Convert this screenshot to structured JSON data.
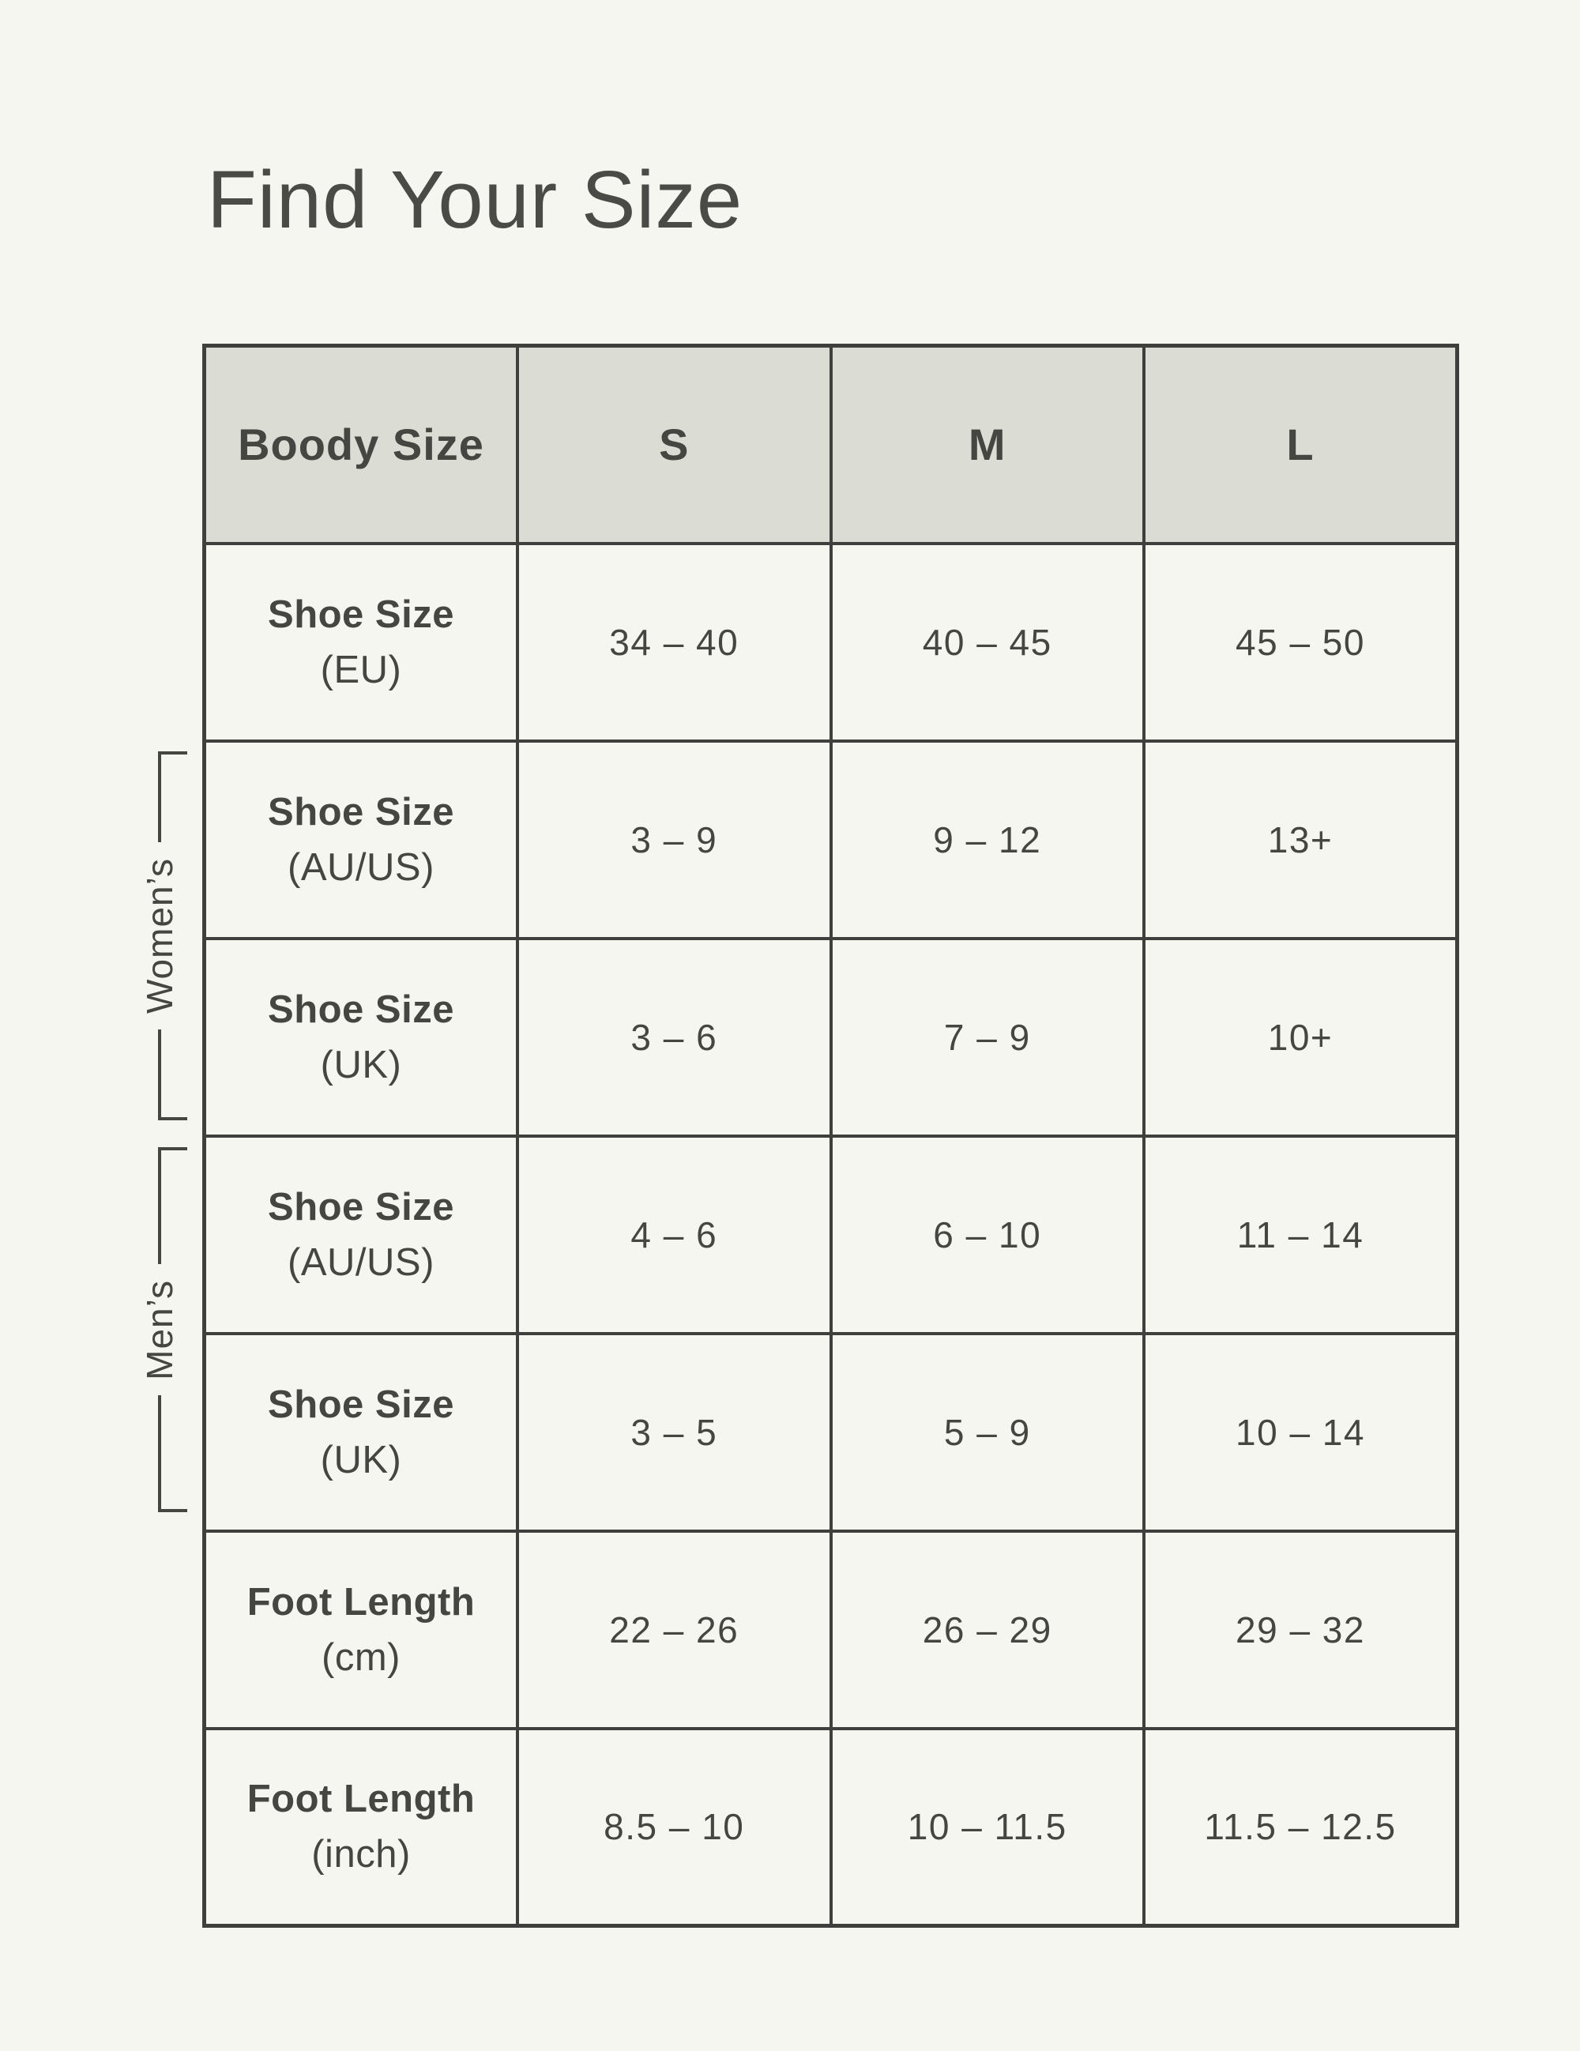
{
  "title": "Find Your Size",
  "colors": {
    "page_bg": "#F6F6F0",
    "header_bg": "#DBDCD3",
    "border": "#3F3F3D",
    "text": "#454541"
  },
  "groups": {
    "womens": "Women’s",
    "mens": "Men’s"
  },
  "table": {
    "header": {
      "col0": "Boody Size",
      "col1": "S",
      "col2": "M",
      "col3": "L"
    },
    "rows": [
      {
        "label": "Shoe Size",
        "sub": "(EU)",
        "values": [
          "34 – 40",
          "40 – 45",
          "45 – 50"
        ]
      },
      {
        "label": "Shoe Size",
        "sub": "(AU/US)",
        "values": [
          "3 – 9",
          "9 – 12",
          "13+"
        ]
      },
      {
        "label": "Shoe Size",
        "sub": "(UK)",
        "values": [
          "3 – 6",
          "7 – 9",
          "10+"
        ]
      },
      {
        "label": "Shoe Size",
        "sub": "(AU/US)",
        "values": [
          "4 – 6",
          "6 – 10",
          "11 – 14"
        ]
      },
      {
        "label": "Shoe Size",
        "sub": "(UK)",
        "values": [
          "3 – 5",
          "5 – 9",
          "10 – 14"
        ]
      },
      {
        "label": "Foot Length",
        "sub": "(cm)",
        "values": [
          "22 – 26",
          "26 – 29",
          "29 – 32"
        ]
      },
      {
        "label": "Foot Length",
        "sub": "(inch)",
        "values": [
          "8.5 – 10",
          "10 – 11.5",
          "11.5 – 12.5"
        ]
      }
    ]
  },
  "chart_data": {
    "type": "table",
    "title": "Find Your Size",
    "columns": [
      "Boody Size",
      "S",
      "M",
      "L"
    ],
    "rows": [
      {
        "label": "Shoe Size (EU)",
        "S": "34 – 40",
        "M": "40 – 45",
        "L": "45 – 50",
        "group": ""
      },
      {
        "label": "Shoe Size (AU/US)",
        "S": "3 – 9",
        "M": "9 – 12",
        "L": "13+",
        "group": "Women’s"
      },
      {
        "label": "Shoe Size (UK)",
        "S": "3 – 6",
        "M": "7 – 9",
        "L": "10+",
        "group": "Women’s"
      },
      {
        "label": "Shoe Size (AU/US)",
        "S": "4 – 6",
        "M": "6 – 10",
        "L": "11 – 14",
        "group": "Men’s"
      },
      {
        "label": "Shoe Size (UK)",
        "S": "3 – 5",
        "M": "5 – 9",
        "L": "10 – 14",
        "group": "Men’s"
      },
      {
        "label": "Foot Length (cm)",
        "S": "22 – 26",
        "M": "26 – 29",
        "L": "29 – 32",
        "group": ""
      },
      {
        "label": "Foot Length (inch)",
        "S": "8.5 – 10",
        "M": "10 – 11.5",
        "L": "11.5 – 12.5",
        "group": ""
      }
    ],
    "row_groups": [
      {
        "label": "Women’s",
        "row_indexes": [
          1,
          2
        ]
      },
      {
        "label": "Men’s",
        "row_indexes": [
          3,
          4
        ]
      }
    ]
  }
}
